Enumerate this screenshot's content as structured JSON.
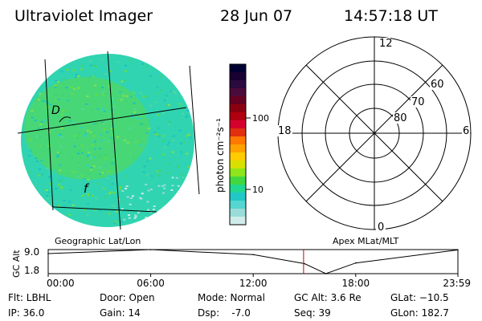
{
  "header": {
    "title": "Ultraviolet Imager",
    "date": "28 Jun 07",
    "time": "14:57:18 UT"
  },
  "colorbar": {
    "unit_label": "photon cm⁻²s⁻¹",
    "tick_labels": [
      "100",
      "10"
    ],
    "colors": [
      "#000033",
      "#1a0033",
      "#2b0a3d",
      "#4a0b3a",
      "#660022",
      "#8b0010",
      "#b00010",
      "#d6002e",
      "#e03010",
      "#ff7800",
      "#ffa200",
      "#ffcc00",
      "#d8e000",
      "#8ce61a",
      "#40d840",
      "#20d890",
      "#20c8c8",
      "#55d6d0",
      "#9adcd8",
      "#d0ecea"
    ]
  },
  "image_annotations": {
    "d_label": "D",
    "f_label": "f"
  },
  "polar": {
    "mlt_labels": [
      "12",
      "18",
      "6",
      "0"
    ],
    "mlat_labels": [
      "60",
      "70",
      "80"
    ]
  },
  "gc_alt": {
    "panel_label": "GC Alt",
    "y_ticks": [
      "9.0",
      "1.8"
    ],
    "left_title": "Geographic Lat/Lon",
    "right_title": "Apex MLat/MLT",
    "x_ticks": [
      "00:00",
      "06:00",
      "12:00",
      "18:00",
      "23:59"
    ]
  },
  "status": {
    "flt": "Flt: LBHL",
    "ip": "IP: 36.0",
    "door": "Door: Open",
    "gain": "Gain: 14",
    "mode": "Mode: Normal",
    "dsp": "Dsp:    -7.0",
    "gcalt": "GC Alt: 3.6 Re",
    "seq": "Seq: 39",
    "glat": "GLat: −10.5",
    "glon": "GLon: 182.7"
  },
  "chart_data": {
    "type": "line",
    "title": "",
    "xlabel": "",
    "ylabel": "GC Alt",
    "x": [
      "00:00",
      "06:00",
      "12:00",
      "15:00",
      "16:15",
      "18:00",
      "23:59"
    ],
    "values": [
      7.8,
      9.0,
      7.5,
      4.8,
      1.8,
      5.0,
      8.9
    ],
    "ylim": [
      1.8,
      9.0
    ],
    "current_time": "14:57"
  }
}
